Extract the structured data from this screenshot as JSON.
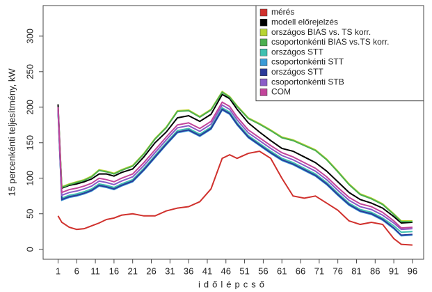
{
  "chart_data": {
    "type": "line",
    "xlabel": "időlépcső",
    "ylabel": "15 percenkénti teljesítmény, kW",
    "x": [
      1,
      2,
      4,
      6,
      8,
      10,
      12,
      14,
      16,
      18,
      21,
      24,
      27,
      30,
      33,
      36,
      39,
      42,
      45,
      47,
      49,
      52,
      55,
      58,
      61,
      64,
      67,
      70,
      73,
      76,
      79,
      82,
      85,
      88,
      91,
      93,
      96
    ],
    "xlim": [
      -3,
      99
    ],
    "xticks": [
      1,
      6,
      11,
      16,
      21,
      26,
      31,
      36,
      41,
      46,
      51,
      56,
      61,
      66,
      71,
      76,
      81,
      86,
      91,
      96
    ],
    "ylim": [
      -14,
      343
    ],
    "yticks": [
      0,
      50,
      100,
      150,
      200,
      250,
      300
    ],
    "legend": "top-right",
    "series": [
      {
        "name": "mérés",
        "color": "#d0312d",
        "values": [
          47,
          38,
          31,
          28,
          29,
          33,
          37,
          42,
          44,
          48,
          50,
          47,
          47,
          54,
          58,
          60,
          67,
          85,
          128,
          133,
          128,
          135,
          138,
          128,
          100,
          75,
          72,
          75,
          65,
          55,
          40,
          35,
          38,
          35,
          15,
          7,
          6
        ]
      },
      {
        "name": "modell előrejelzés",
        "color": "#000000",
        "values": [
          204,
          86,
          90,
          92,
          95,
          99,
          106,
          106,
          103,
          108,
          113,
          130,
          150,
          165,
          185,
          188,
          180,
          190,
          218,
          212,
          197,
          178,
          165,
          153,
          142,
          138,
          130,
          122,
          110,
          95,
          80,
          70,
          65,
          58,
          46,
          37,
          38
        ]
      },
      {
        "name": "országos BIAS vs. TS korr.",
        "color": "#b8d432",
        "values": [
          198,
          88,
          92,
          95,
          98,
          103,
          112,
          110,
          107,
          112,
          118,
          135,
          156,
          172,
          195,
          196,
          187,
          197,
          222,
          215,
          202,
          185,
          177,
          168,
          158,
          154,
          147,
          140,
          127,
          110,
          92,
          78,
          72,
          64,
          50,
          40,
          40
        ]
      },
      {
        "name": "csoportonkénti BIAS vs.TS korr.",
        "color": "#4caf50",
        "values": [
          196,
          87,
          91,
          94,
          97,
          102,
          111,
          109,
          106,
          111,
          117,
          134,
          155,
          171,
          194,
          195,
          186,
          196,
          221,
          214,
          201,
          184,
          176,
          167,
          157,
          153,
          146,
          139,
          126,
          109,
          91,
          77,
          71,
          63,
          49,
          39,
          39
        ]
      },
      {
        "name": "országos STT",
        "color": "#40c0b0",
        "values": [
          194,
          72,
          76,
          78,
          81,
          85,
          92,
          90,
          87,
          92,
          98,
          114,
          132,
          150,
          167,
          170,
          162,
          172,
          199,
          193,
          178,
          160,
          149,
          138,
          128,
          122,
          114,
          106,
          94,
          79,
          65,
          56,
          52,
          44,
          33,
          24,
          25
        ]
      },
      {
        "name": "csoportonkénti STT",
        "color": "#3a9bd6",
        "values": [
          195,
          69,
          73,
          75,
          78,
          82,
          89,
          87,
          84,
          89,
          95,
          111,
          129,
          147,
          164,
          167,
          159,
          169,
          196,
          190,
          175,
          157,
          146,
          135,
          125,
          119,
          111,
          103,
          91,
          76,
          62,
          53,
          49,
          41,
          29,
          19,
          20
        ]
      },
      {
        "name": "országos STT",
        "color": "#2b3a99",
        "values": [
          196,
          70,
          74,
          76,
          79,
          83,
          90,
          88,
          85,
          90,
          96,
          112,
          130,
          148,
          165,
          168,
          160,
          170,
          197,
          191,
          176,
          158,
          147,
          136,
          126,
          120,
          112,
          104,
          92,
          77,
          63,
          54,
          50,
          42,
          30,
          20,
          21
        ]
      },
      {
        "name": "csoportonkénti STB",
        "color": "#8a5cc7",
        "values": [
          198,
          76,
          80,
          82,
          85,
          89,
          96,
          94,
          91,
          96,
          102,
          118,
          136,
          154,
          171,
          174,
          166,
          176,
          203,
          197,
          182,
          164,
          153,
          142,
          132,
          126,
          118,
          110,
          98,
          83,
          69,
          60,
          56,
          48,
          37,
          28,
          29
        ]
      },
      {
        "name": "COM",
        "color": "#c2449a",
        "values": [
          200,
          80,
          84,
          86,
          89,
          93,
          100,
          98,
          95,
          100,
          106,
          122,
          140,
          158,
          175,
          178,
          170,
          180,
          207,
          201,
          186,
          168,
          157,
          146,
          136,
          130,
          122,
          114,
          102,
          87,
          73,
          64,
          60,
          52,
          40,
          30,
          31
        ]
      }
    ]
  }
}
